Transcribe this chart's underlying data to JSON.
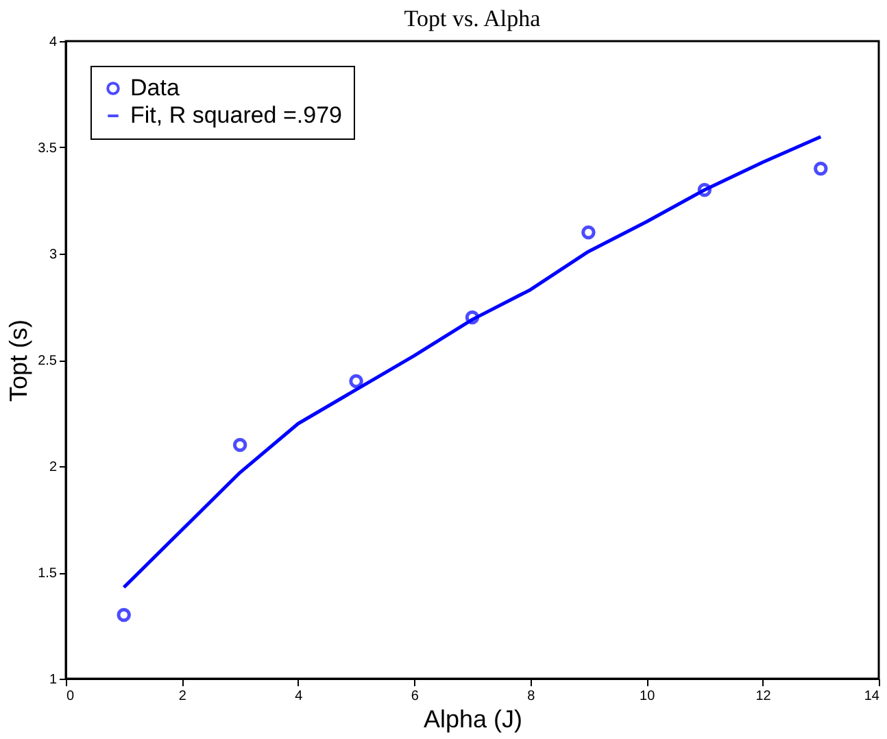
{
  "chart_data": {
    "type": "scatter",
    "title": "Topt vs. Alpha",
    "xlabel": "Alpha (J)",
    "ylabel": "Topt (s)",
    "xlim": [
      0,
      14
    ],
    "xticks": [
      0,
      2,
      4,
      6,
      8,
      10,
      12,
      14
    ],
    "ylim": [
      1,
      4
    ],
    "yticks": [
      1,
      1.5,
      2,
      2.5,
      3,
      3.5,
      4
    ],
    "grid": false,
    "legend": "top left",
    "series": [
      {
        "name": "Data",
        "type": "scatter",
        "marker": "circle",
        "color": "#0000ff",
        "x": [
          1,
          3,
          5,
          7,
          9,
          11,
          13
        ],
        "values": [
          1.3,
          2.1,
          2.4,
          2.7,
          3.1,
          3.3,
          3.4
        ]
      },
      {
        "name": "Fit, R squared =.979",
        "type": "line",
        "marker": "none",
        "line_style": "solid",
        "color": "#0000ff",
        "x": [
          1,
          2,
          3,
          4,
          5,
          6,
          7,
          8,
          9,
          10,
          11,
          12,
          13
        ],
        "values": [
          1.43,
          1.7,
          1.97,
          2.2,
          2.36,
          2.52,
          2.69,
          2.83,
          3.01,
          3.15,
          3.3,
          3.43,
          3.55
        ]
      }
    ]
  }
}
